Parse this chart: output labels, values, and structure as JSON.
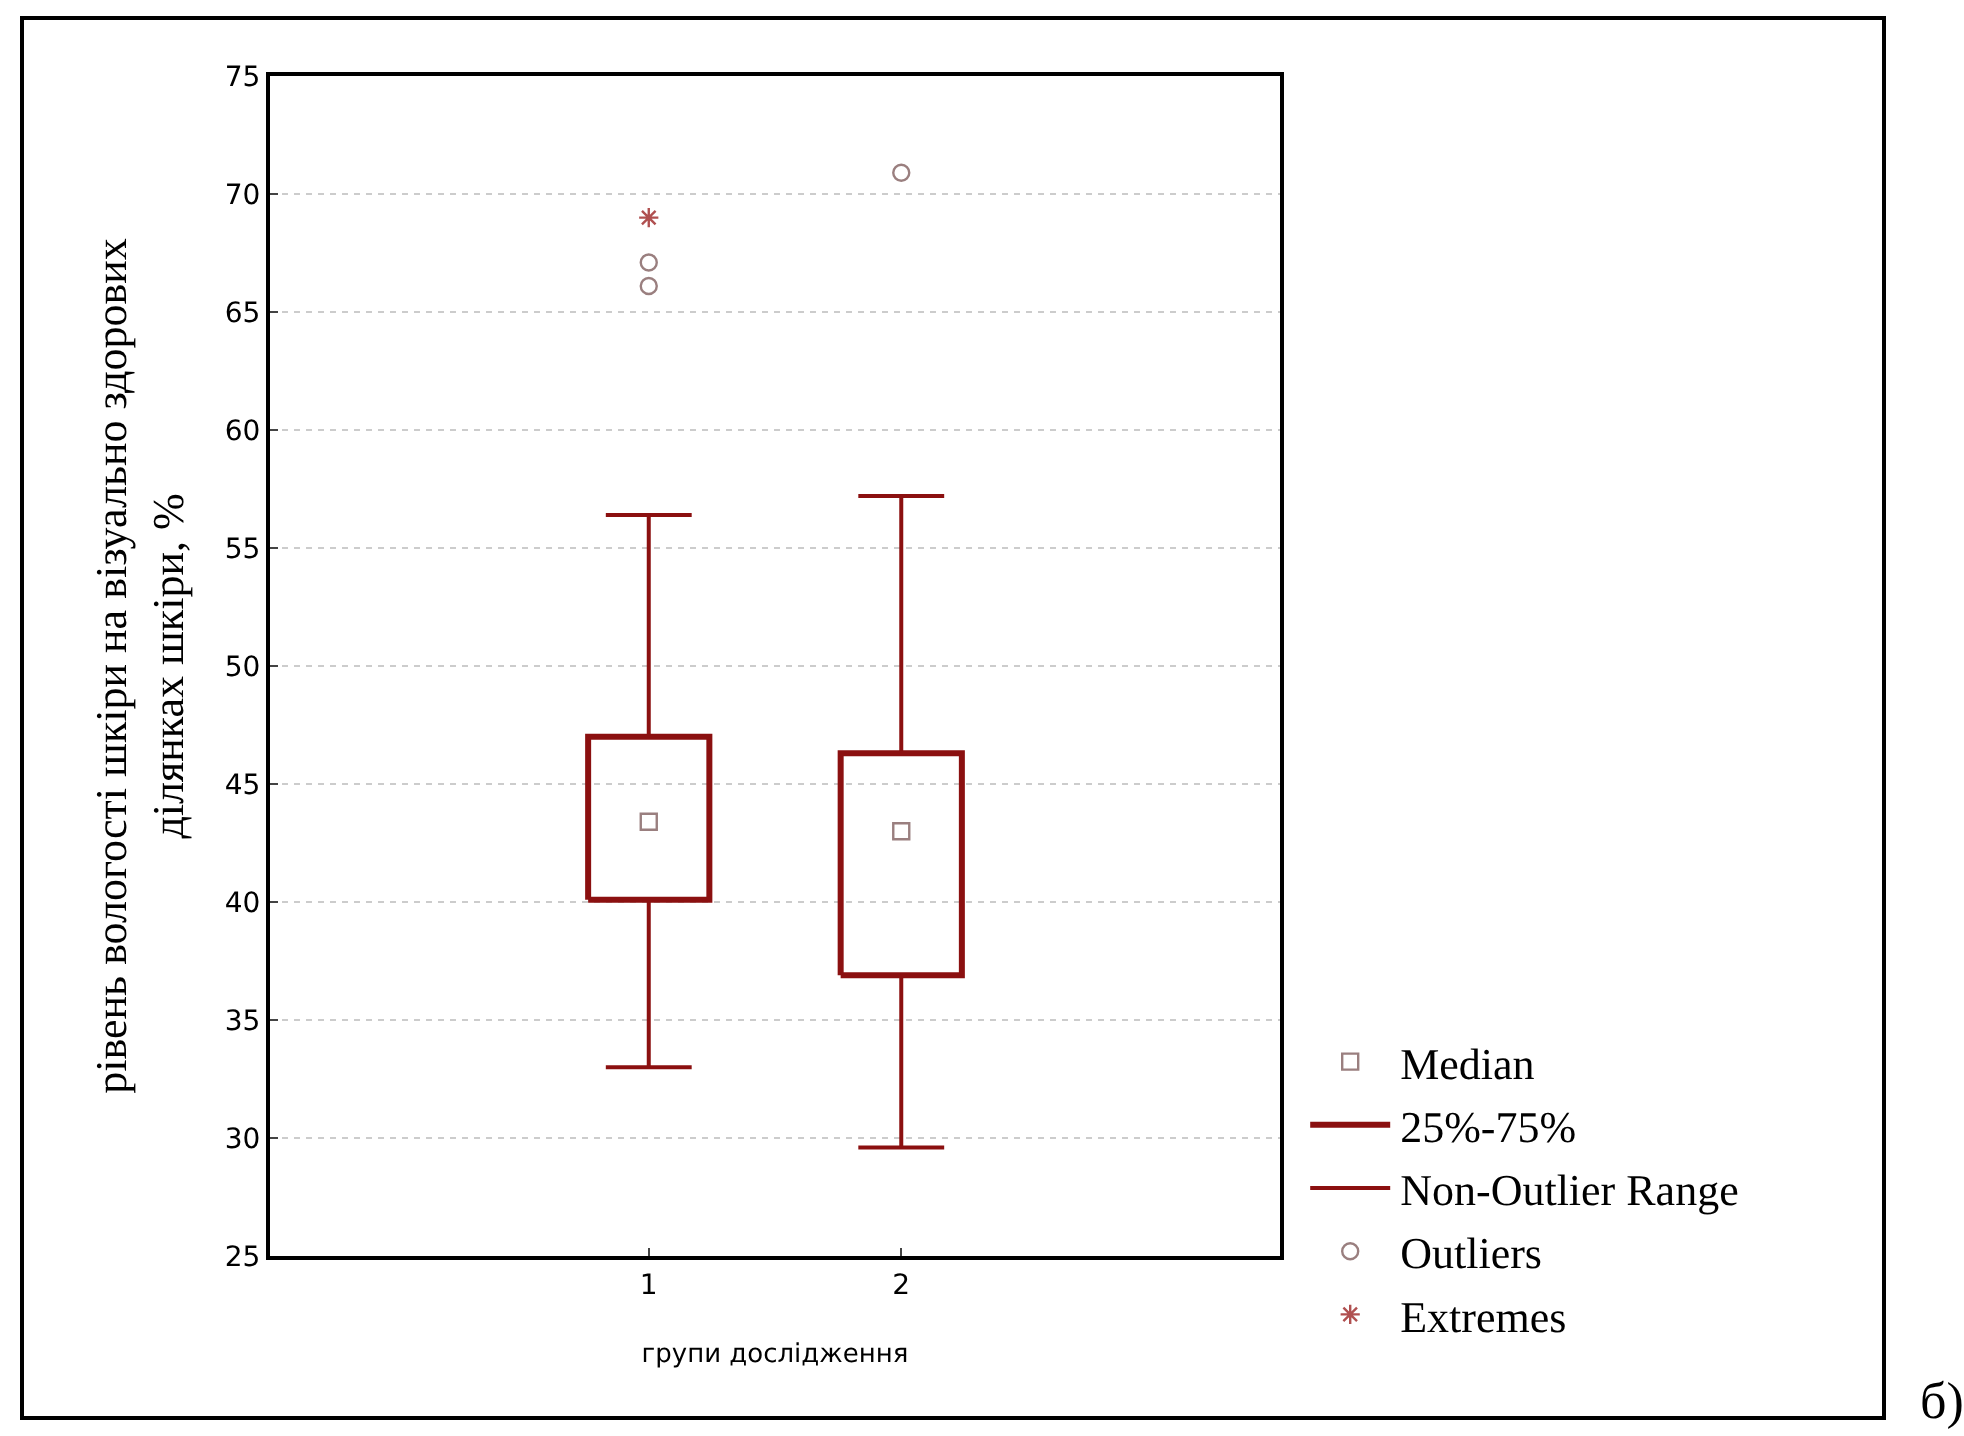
{
  "chart_data": {
    "type": "box",
    "xlabel": "групи дослідження",
    "ylabel": "рівень вологості шкіри на візуально здорових\nділянках шкіри, %",
    "categories": [
      "1",
      "2"
    ],
    "ylim": [
      25,
      75
    ],
    "yticks": [
      25,
      30,
      35,
      40,
      45,
      50,
      55,
      60,
      65,
      70,
      75
    ],
    "grid": "y",
    "legend": "bottom right",
    "annotations": [
      "б)"
    ],
    "series": [
      {
        "name": "Median",
        "type": "scatter",
        "marker": "square",
        "color": "#9a7f7f",
        "values": [
          43.4,
          43.0
        ]
      },
      {
        "name": "25%-75%",
        "type": "box",
        "color": "#8b1010",
        "boxes": [
          {
            "low": 33.0,
            "q1": 40.1,
            "q3": 47.0,
            "high": 56.4
          },
          {
            "low": 29.6,
            "q1": 36.9,
            "q3": 46.3,
            "high": 57.2
          }
        ]
      },
      {
        "name": "Non-Outlier Range",
        "type": "box",
        "color": "#8b1010",
        "values": [
          null,
          null
        ]
      },
      {
        "name": "Outliers",
        "type": "scatter",
        "marker": "circle",
        "color": "#9a7f7f",
        "x": [
          "1",
          "1",
          "2"
        ],
        "values": [
          66.1,
          67.1,
          70.9
        ]
      },
      {
        "name": "Extremes",
        "type": "scatter",
        "marker": "cross",
        "color": "#b05050",
        "x": [
          "1"
        ],
        "values": [
          69.0
        ]
      }
    ]
  }
}
